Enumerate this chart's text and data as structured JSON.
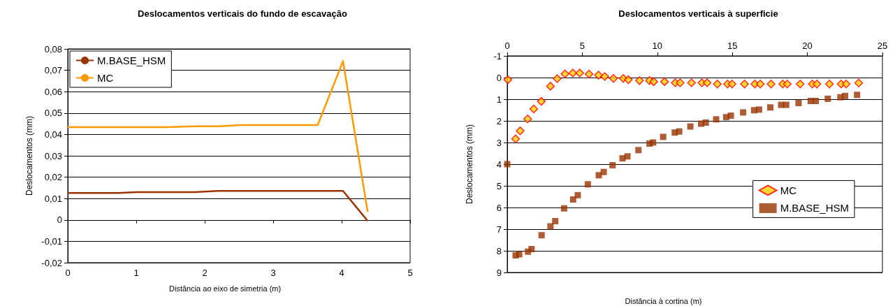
{
  "chart_data": [
    {
      "type": "line",
      "title": "Deslocamentos verticais do fundo de escavação",
      "xlabel": "Distância ao eixo de simetria (m)",
      "ylabel": "Deslocamentos (mm)",
      "xlim": [
        0,
        5
      ],
      "xticks": [
        0,
        1,
        2,
        3,
        4,
        5
      ],
      "ylim": [
        -0.02,
        0.08
      ],
      "yticks": [
        {
          "value": -0.02,
          "label": "-0,02"
        },
        {
          "value": -0.01,
          "label": "-0,01"
        },
        {
          "value": 0,
          "label": "0"
        },
        {
          "value": 0.01,
          "label": "0,01"
        },
        {
          "value": 0.02,
          "label": "0,02"
        },
        {
          "value": 0.03,
          "label": "0,03"
        },
        {
          "value": 0.04,
          "label": "0,04"
        },
        {
          "value": 0.05,
          "label": "0,05"
        },
        {
          "value": 0.06,
          "label": "0,06"
        },
        {
          "value": 0.07,
          "label": "0,07"
        },
        {
          "value": 0.08,
          "label": "0,08"
        }
      ],
      "grid": "y",
      "legend": "top left",
      "marker": "none",
      "series": [
        {
          "name": "M.BASE_HSM",
          "color": "#993300",
          "x": [
            0,
            0.73,
            1.01,
            1.85,
            2.2,
            4.02,
            4.38
          ],
          "values": [
            0.0126,
            0.0126,
            0.013,
            0.013,
            0.0136,
            0.0136,
            -0.0005
          ]
        },
        {
          "name": "MC",
          "color": "#ff9900",
          "x": [
            0,
            0.73,
            1.43,
            1.85,
            2.2,
            2.54,
            3.65,
            4.02,
            4.38
          ],
          "values": [
            0.0434,
            0.0434,
            0.0434,
            0.0438,
            0.0438,
            0.0444,
            0.0444,
            0.0743,
            0.0038
          ]
        }
      ]
    },
    {
      "type": "scatter",
      "title": "Deslocamentos verticais à superficie",
      "xlabel": "Distância à cortina (m)",
      "ylabel": "Deslocamentos (mm)",
      "xlim": [
        0,
        25
      ],
      "xticks": [
        0,
        5,
        10,
        15,
        20,
        25
      ],
      "ylim": [
        9,
        -1
      ],
      "yticks": [
        -1,
        0,
        1,
        2,
        3,
        4,
        5,
        6,
        7,
        8,
        9
      ],
      "grid": "y",
      "legend": "right",
      "series": [
        {
          "name": "MC",
          "color": "#ffcc00",
          "marker": "diamond",
          "x": [
            0.04,
            0.56,
            0.86,
            1.36,
            1.77,
            2.27,
            2.88,
            3.33,
            3.85,
            4.37,
            4.83,
            5.45,
            6.08,
            6.5,
            7.08,
            7.73,
            8.07,
            8.81,
            9.48,
            9.76,
            10.48,
            11.2,
            11.52,
            12.28,
            12.97,
            13.32,
            14.0,
            14.68,
            14.98,
            15.81,
            16.5,
            16.86,
            17.58,
            18.36,
            18.66,
            19.52,
            20.33,
            20.63,
            21.47,
            22.25,
            22.58,
            23.42
          ],
          "values": [
            0.1,
            2.83,
            2.46,
            1.91,
            1.45,
            1.1,
            0.4,
            0.05,
            -0.17,
            -0.21,
            -0.21,
            -0.16,
            -0.11,
            -0.05,
            0.04,
            0.04,
            0.1,
            0.14,
            0.14,
            0.19,
            0.19,
            0.24,
            0.24,
            0.24,
            0.24,
            0.24,
            0.3,
            0.3,
            0.3,
            0.3,
            0.3,
            0.3,
            0.3,
            0.3,
            0.3,
            0.3,
            0.3,
            0.3,
            0.3,
            0.3,
            0.3,
            0.25
          ]
        },
        {
          "name": "M.BASE_HSM",
          "color": "#993300",
          "marker": "square",
          "x": [
            0,
            0.56,
            0.8,
            1.38,
            1.62,
            2.29,
            2.88,
            3.2,
            3.79,
            4.39,
            4.7,
            5.37,
            6.1,
            6.43,
            7.02,
            7.68,
            8.01,
            8.74,
            9.48,
            9.72,
            10.39,
            11.16,
            11.46,
            12.2,
            12.92,
            13.23,
            13.92,
            14.59,
            14.9,
            15.72,
            16.45,
            16.78,
            17.53,
            18.25,
            18.59,
            19.41,
            20.22,
            20.56,
            21.36,
            22.2,
            22.51,
            23.31
          ],
          "values": [
            4.0,
            8.21,
            8.16,
            8.04,
            7.92,
            7.28,
            6.87,
            6.63,
            6.04,
            5.63,
            5.43,
            4.93,
            4.51,
            4.36,
            4.05,
            3.73,
            3.64,
            3.35,
            3.05,
            3.0,
            2.74,
            2.54,
            2.49,
            2.26,
            2.13,
            2.08,
            1.93,
            1.83,
            1.76,
            1.61,
            1.51,
            1.48,
            1.38,
            1.26,
            1.26,
            1.18,
            1.08,
            1.08,
            0.98,
            0.91,
            0.85,
            0.8
          ]
        }
      ]
    }
  ]
}
